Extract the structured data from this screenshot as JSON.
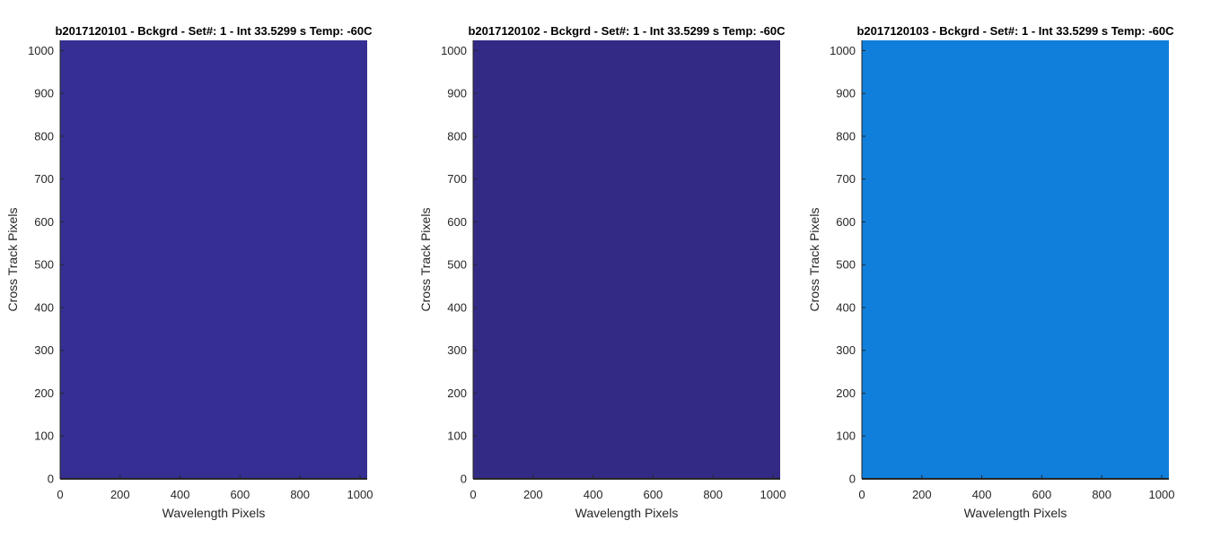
{
  "chart_data": [
    {
      "type": "heatmap",
      "title": "b2017120101 - Bckgrd - Set#: 1 - Int 33.5299 s Temp: -60C",
      "xlabel": "Wavelength Pixels",
      "ylabel": "Cross Track Pixels",
      "xlim": [
        0,
        1024
      ],
      "ylim": [
        0,
        1024
      ],
      "xticks": [
        0,
        200,
        400,
        600,
        800,
        1000
      ],
      "yticks": [
        0,
        100,
        200,
        300,
        400,
        500,
        600,
        700,
        800,
        900,
        1000
      ],
      "fill_color": "#352F93",
      "grid": false
    },
    {
      "type": "heatmap",
      "title": "b2017120102 - Bckgrd - Set#: 1 - Int 33.5299 s Temp: -60C",
      "xlabel": "Wavelength Pixels",
      "ylabel": "Cross Track Pixels",
      "xlim": [
        0,
        1024
      ],
      "ylim": [
        0,
        1024
      ],
      "xticks": [
        0,
        200,
        400,
        600,
        800,
        1000
      ],
      "yticks": [
        0,
        100,
        200,
        300,
        400,
        500,
        600,
        700,
        800,
        900,
        1000
      ],
      "fill_color": "#332A85",
      "grid": false
    },
    {
      "type": "heatmap",
      "title": "b2017120103 - Bckgrd - Set#: 1 - Int 33.5299 s Temp: -60C",
      "xlabel": "Wavelength Pixels",
      "ylabel": "Cross Track Pixels",
      "xlim": [
        0,
        1024
      ],
      "ylim": [
        0,
        1024
      ],
      "xticks": [
        0,
        200,
        400,
        600,
        800,
        1000
      ],
      "yticks": [
        0,
        100,
        200,
        300,
        400,
        500,
        600,
        700,
        800,
        900,
        1000
      ],
      "fill_color": "#0F7FDB",
      "grid": false
    }
  ]
}
